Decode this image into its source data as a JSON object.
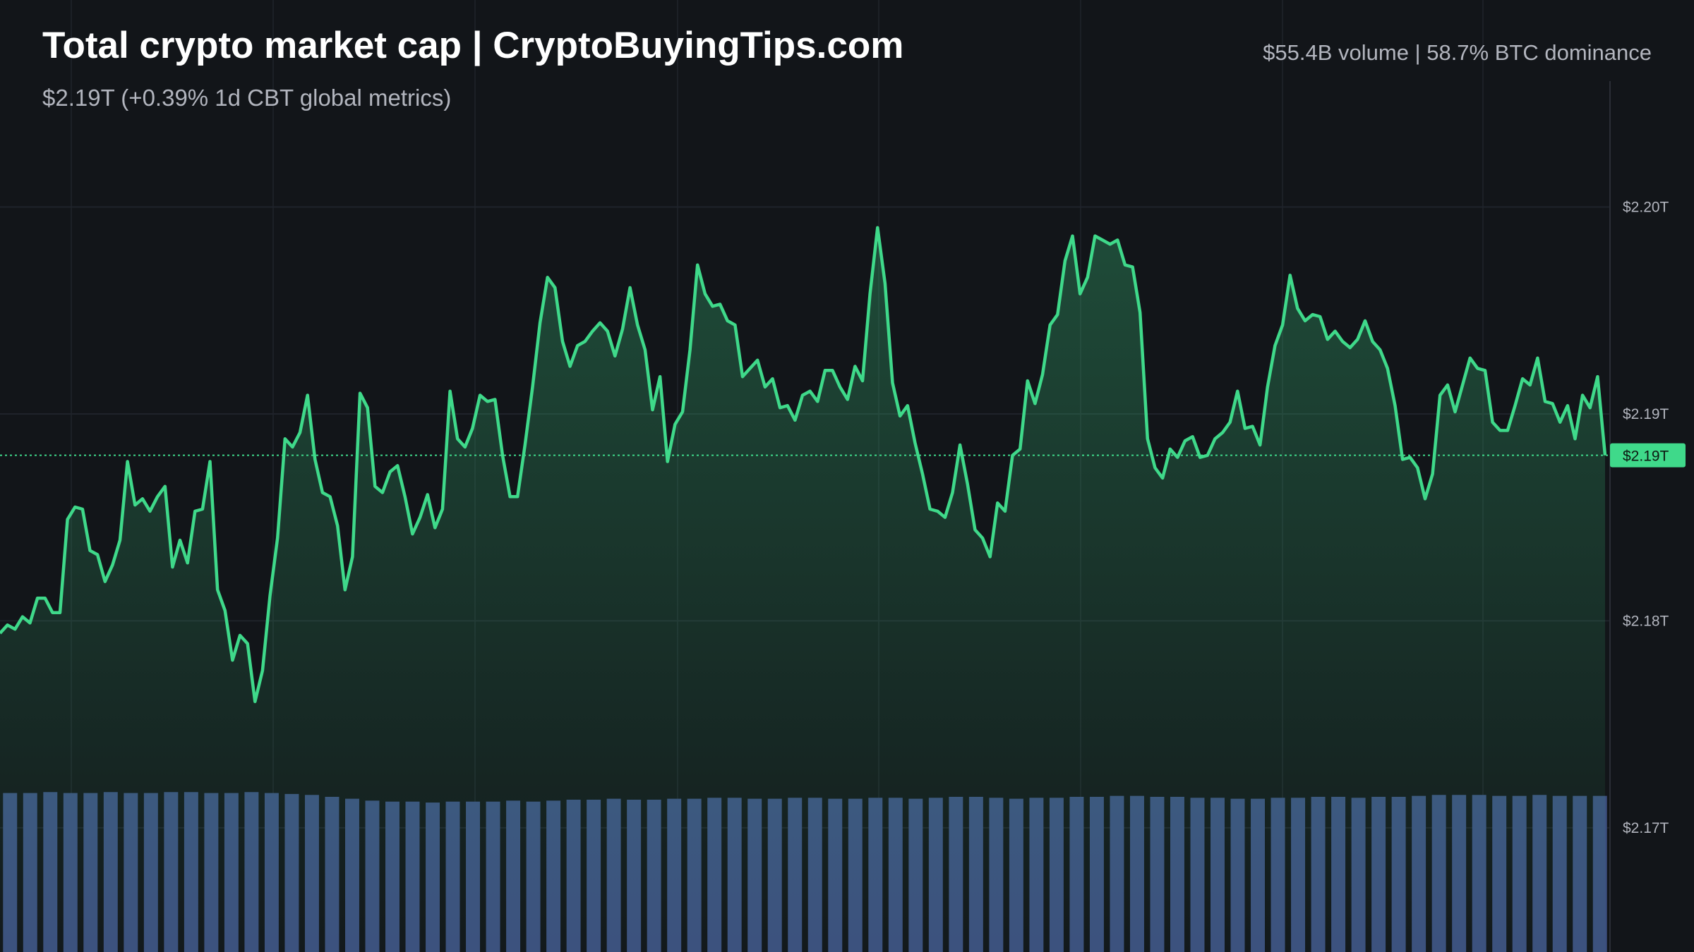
{
  "chart_data": {
    "type": "line",
    "title": "Total crypto market cap | CryptoBuyingTips.com",
    "subtitle": "$2.19T (+0.39% 1d CBT global metrics)",
    "stats": "$55.4B volume | 58.7% BTC dominance",
    "color": "#3fd98a",
    "values": [
      2.1794,
      2.1798,
      2.1796,
      2.1802,
      2.1799,
      2.1811,
      2.1811,
      2.1804,
      2.1804,
      2.1849,
      2.1855,
      2.1854,
      2.1834,
      2.1832,
      2.1819,
      2.1827,
      2.1839,
      2.1877,
      2.1856,
      2.1859,
      2.1853,
      2.186,
      2.1865,
      2.1826,
      2.1839,
      2.1828,
      2.1853,
      2.1854,
      2.1877,
      2.1815,
      2.1805,
      2.1781,
      2.1793,
      2.1789,
      2.1761,
      2.1776,
      2.1812,
      2.184,
      2.1888,
      2.1884,
      2.1891,
      2.1909,
      2.1878,
      2.1862,
      2.186,
      2.1846,
      2.1815,
      2.1831,
      2.191,
      2.1903,
      2.1865,
      2.1862,
      2.1872,
      2.1875,
      2.186,
      2.1842,
      2.185,
      2.1861,
      2.1845,
      2.1854,
      2.1911,
      2.1888,
      2.1884,
      2.1893,
      2.1909,
      2.1906,
      2.1907,
      2.188,
      2.186,
      2.186,
      2.1885,
      2.1913,
      2.1944,
      2.1966,
      2.1961,
      2.1935,
      2.1923,
      2.1933,
      2.1935,
      2.194,
      2.1944,
      2.194,
      2.1928,
      2.1941,
      2.1961,
      2.1943,
      2.1931,
      2.1902,
      2.1918,
      2.1877,
      2.1895,
      2.1901,
      2.1931,
      2.1972,
      2.1958,
      2.1952,
      2.1953,
      2.1945,
      2.1943,
      2.1918,
      2.1922,
      2.1926,
      2.1913,
      2.1917,
      2.1903,
      2.1904,
      2.1897,
      2.1909,
      2.1911,
      2.1906,
      2.1921,
      2.1921,
      2.1913,
      2.1907,
      2.1923,
      2.1916,
      2.1958,
      2.199,
      2.1963,
      2.1915,
      2.1899,
      2.1904,
      2.1886,
      2.1871,
      2.1854,
      2.1853,
      2.185,
      2.1862,
      2.1885,
      2.1866,
      2.1844,
      2.184,
      2.1831,
      2.1857,
      2.1853,
      2.188,
      2.1883,
      2.1916,
      2.1905,
      2.1919,
      2.1943,
      2.1948,
      2.1974,
      2.1986,
      2.1958,
      2.1966,
      2.1986,
      2.1984,
      2.1982,
      2.1984,
      2.1972,
      2.1971,
      2.1949,
      2.1888,
      2.1874,
      2.1869,
      2.1883,
      2.1879,
      2.1887,
      2.1889,
      2.1879,
      2.188,
      2.1888,
      2.1891,
      2.1896,
      2.1911,
      2.1893,
      2.1894,
      2.1885,
      2.1913,
      2.1933,
      2.1943,
      2.1967,
      2.1951,
      2.1945,
      2.1948,
      2.1947,
      2.1936,
      2.194,
      2.1935,
      2.1932,
      2.1936,
      2.1945,
      2.1935,
      2.1931,
      2.1922,
      2.1904,
      2.1878,
      2.1879,
      2.1874,
      2.1859,
      2.1871,
      2.1909,
      2.1914,
      2.1901,
      2.1914,
      2.1927,
      2.1922,
      2.1921,
      2.1896,
      2.1892,
      2.1892,
      2.1904,
      2.1917,
      2.1914,
      2.1927,
      2.1906,
      2.1905,
      2.1896,
      2.1904,
      2.1888,
      2.1909,
      2.1903,
      2.1918,
      2.188
    ],
    "ylim": [
      2.164,
      2.21
    ],
    "yticks": [
      {
        "value": 2.2,
        "label": "$2.20T"
      },
      {
        "value": 2.19,
        "label": "$2.19T"
      },
      {
        "value": 2.18,
        "label": "$2.18T"
      },
      {
        "value": 2.17,
        "label": "$2.17T"
      }
    ],
    "grid": true,
    "last_price": {
      "value": 2.188,
      "label": "$2.19T"
    },
    "volume": {
      "color": "#3c4f7e",
      "values": [
        16.7,
        16.7,
        16.8,
        16.7,
        16.7,
        16.8,
        16.7,
        16.7,
        16.8,
        16.8,
        16.7,
        16.7,
        16.8,
        16.7,
        16.6,
        16.5,
        16.3,
        16.1,
        15.9,
        15.8,
        15.8,
        15.7,
        15.8,
        15.8,
        15.8,
        15.9,
        15.8,
        15.9,
        16.0,
        16.0,
        16.1,
        16.0,
        16.0,
        16.1,
        16.1,
        16.2,
        16.2,
        16.1,
        16.1,
        16.2,
        16.2,
        16.1,
        16.1,
        16.2,
        16.2,
        16.1,
        16.2,
        16.3,
        16.3,
        16.2,
        16.1,
        16.2,
        16.2,
        16.3,
        16.3,
        16.4,
        16.4,
        16.3,
        16.3,
        16.2,
        16.2,
        16.1,
        16.1,
        16.2,
        16.2,
        16.3,
        16.3,
        16.2,
        16.3,
        16.3,
        16.4,
        16.5,
        16.5,
        16.5,
        16.4,
        16.4,
        16.5,
        16.4,
        16.4,
        16.4
      ]
    },
    "volume_ylim": [
      0,
      100
    ]
  }
}
